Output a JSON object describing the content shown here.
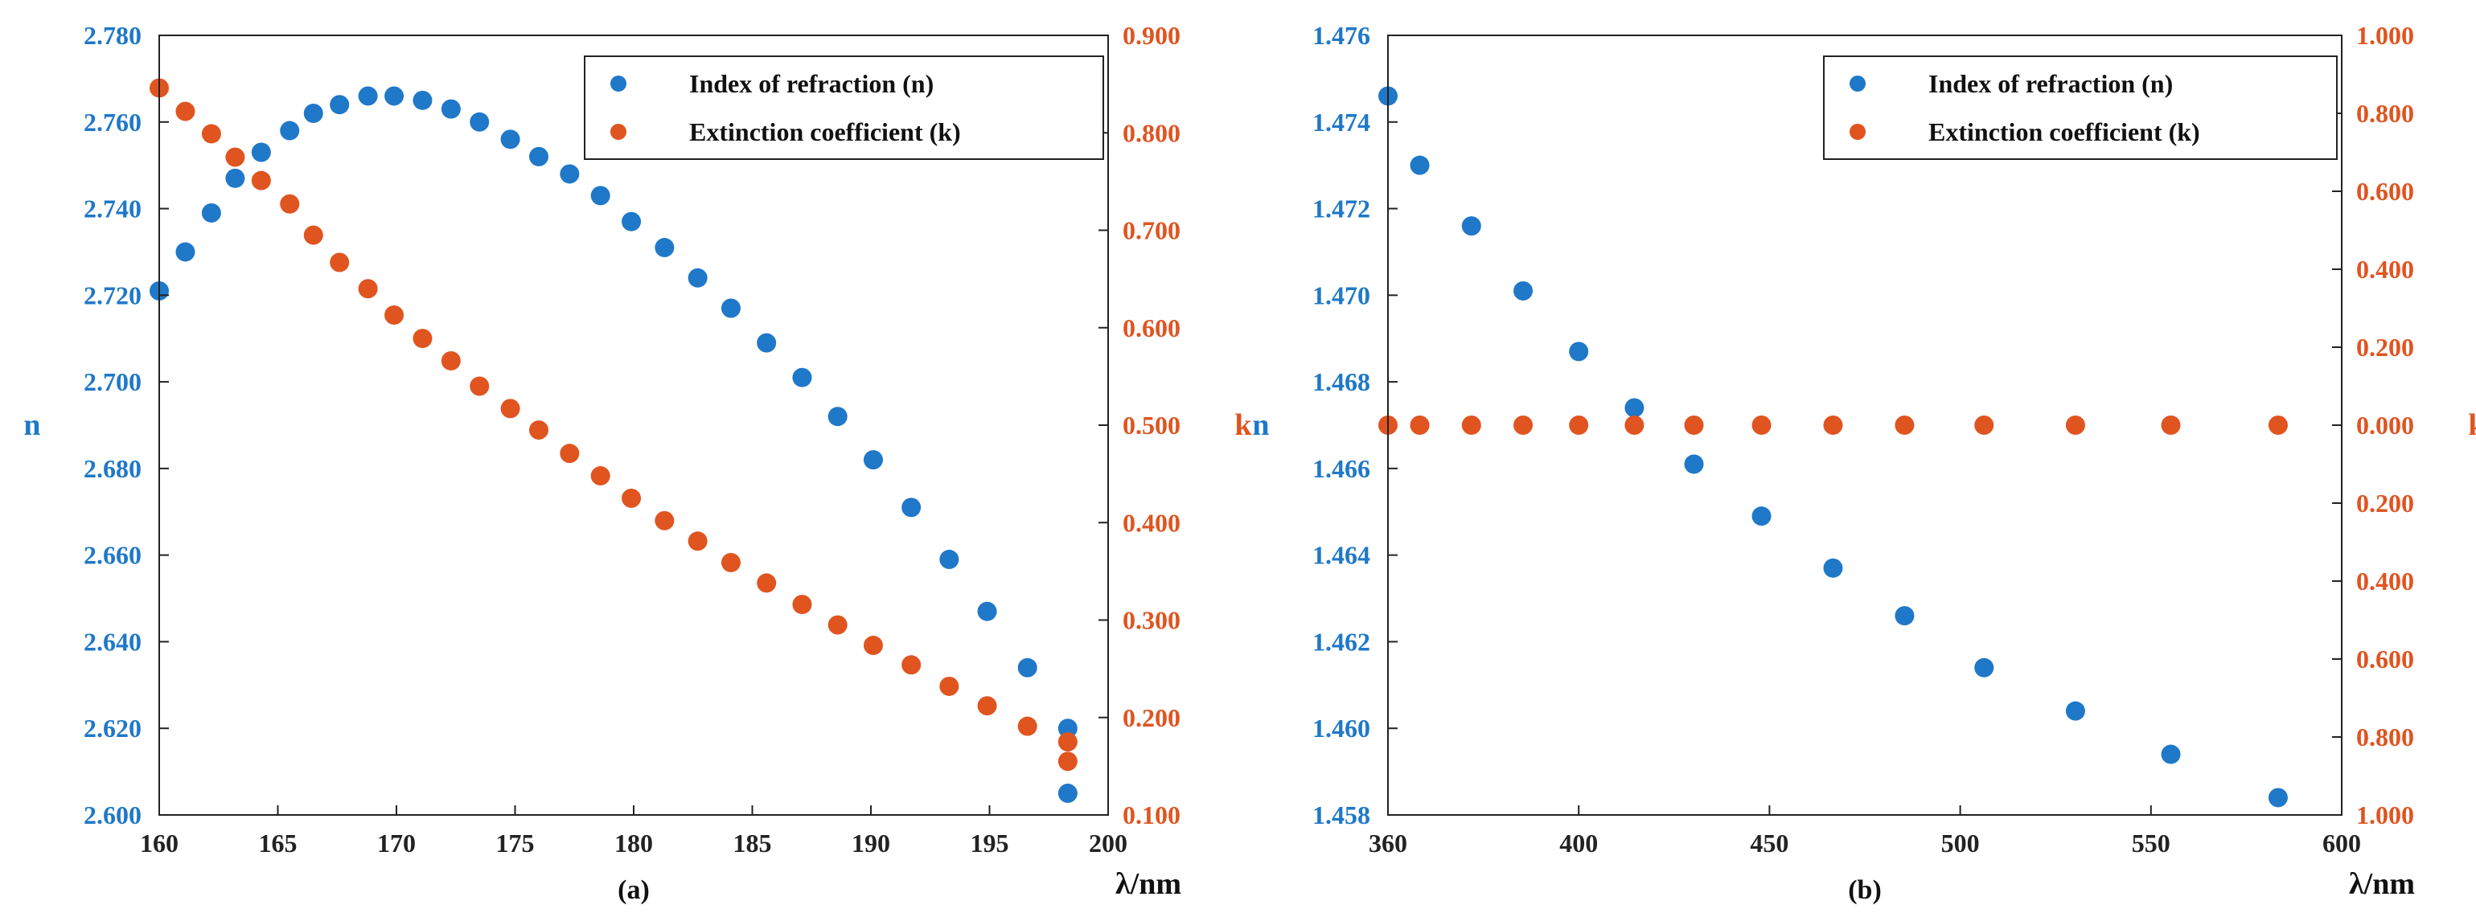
{
  "colors": {
    "n": "#1f78c8",
    "k": "#e05420",
    "axis": "#222222"
  },
  "chart_data": [
    {
      "type": "scatter",
      "panel_label": "(a)",
      "xlabel": "λ/nm",
      "ylabel_left": "n",
      "ylabel_right": "k",
      "xlim": [
        160,
        200
      ],
      "ylim_left": [
        2.6,
        2.78
      ],
      "ylim_right": [
        0.1,
        0.9
      ],
      "x_ticks": [
        "160",
        "165",
        "170",
        "175",
        "180",
        "185",
        "190",
        "195",
        "200"
      ],
      "y_left_ticks": [
        "2.600",
        "2.620",
        "2.640",
        "2.660",
        "2.680",
        "2.700",
        "2.720",
        "2.740",
        "2.760",
        "2.780"
      ],
      "y_right_ticks": [
        "0.100",
        "0.200",
        "0.300",
        "0.400",
        "0.500",
        "0.600",
        "0.700",
        "0.800",
        "0.900"
      ],
      "grid": false,
      "legend_position": "top-right",
      "series": [
        {
          "name": "Index of refraction (n)",
          "axis": "left",
          "color": "#1f78c8",
          "x": [
            160.0,
            161.1,
            162.2,
            163.2,
            164.3,
            165.5,
            166.5,
            167.6,
            168.8,
            169.9,
            171.1,
            172.3,
            173.5,
            174.8,
            176.0,
            177.3,
            178.6,
            179.9,
            181.3,
            182.7,
            184.1,
            185.6,
            187.1,
            188.6,
            190.1,
            191.7,
            193.3,
            194.9,
            196.6,
            198.3
          ],
          "y": [
            2.721,
            2.73,
            2.739,
            2.747,
            2.753,
            2.758,
            2.762,
            2.764,
            2.766,
            2.766,
            2.765,
            2.763,
            2.76,
            2.756,
            2.752,
            2.748,
            2.743,
            2.737,
            2.731,
            2.724,
            2.717,
            2.709,
            2.701,
            2.692,
            2.682,
            2.671,
            2.659,
            2.647,
            2.634,
            2.62
          ]
        },
        {
          "name": "Extinction coefficient (k)",
          "axis": "right",
          "color": "#e05420",
          "x": [
            160.0,
            161.1,
            162.2,
            163.2,
            164.3,
            165.5,
            166.5,
            167.6,
            168.8,
            169.9,
            171.1,
            172.3,
            173.5,
            174.8,
            176.0,
            177.3,
            178.6,
            179.9,
            181.3,
            182.7,
            184.1,
            185.6,
            187.1,
            188.6,
            190.1,
            191.7,
            193.3,
            194.9,
            196.6,
            198.3
          ],
          "y": [
            0.846,
            0.822,
            0.799,
            0.775,
            0.751,
            0.727,
            0.695,
            0.667,
            0.64,
            0.613,
            0.589,
            0.566,
            0.54,
            0.517,
            0.495,
            0.471,
            0.448,
            0.425,
            0.402,
            0.381,
            0.359,
            0.338,
            0.316,
            0.295,
            0.274,
            0.254,
            0.232,
            0.212,
            0.191,
            0.175
          ]
        },
        {
          "name": "",
          "axis": "left",
          "color": "#1f78c8",
          "x": [
            198.3
          ],
          "y": [
            2.605
          ],
          "extra_point": true
        },
        {
          "name": "",
          "axis": "right",
          "color": "#e05420",
          "x": [
            198.3
          ],
          "y": [
            0.155
          ],
          "extra_point": true
        }
      ]
    },
    {
      "type": "scatter",
      "panel_label": "(b)",
      "xlabel": "λ/nm",
      "ylabel_left": "n",
      "ylabel_right": "k",
      "xlim": [
        360,
        600
      ],
      "ylim_left": [
        1.458,
        1.476
      ],
      "ylim_right": [
        1.0,
        -1.0
      ],
      "x_ticks": [
        "360",
        "400",
        "450",
        "500",
        "550",
        "600"
      ],
      "y_left_ticks": [
        "1.458",
        "1.460",
        "1.462",
        "1.464",
        "1.466",
        "1.468",
        "1.470",
        "1.472",
        "1.474",
        "1.476"
      ],
      "y_right_ticks": [
        "1.000",
        "0.800",
        "0.600",
        "0.400",
        "0.200",
        "0.000",
        "0.200",
        "0.400",
        "0.600",
        "0.800",
        "1.000"
      ],
      "grid": false,
      "legend_position": "top-right",
      "series": [
        {
          "name": "Index of refraction (n)",
          "axis": "left",
          "color": "#1f78c8",
          "x": [
            360,
            368,
            381,
            394,
            408,
            422,
            437,
            454,
            472,
            490,
            510,
            533,
            557,
            584
          ],
          "y": [
            1.4746,
            1.473,
            1.4716,
            1.4701,
            1.4687,
            1.4674,
            1.4661,
            1.4649,
            1.4637,
            1.4626,
            1.4614,
            1.4604,
            1.4594,
            1.4584
          ]
        },
        {
          "name": "Extinction coefficient (k)",
          "axis": "right",
          "color": "#e05420",
          "x": [
            360,
            368,
            381,
            394,
            408,
            422,
            437,
            454,
            472,
            490,
            510,
            533,
            557,
            584
          ],
          "y": [
            0,
            0,
            0,
            0,
            0,
            0,
            0,
            0,
            0,
            0,
            0,
            0,
            0,
            0
          ]
        }
      ]
    }
  ]
}
